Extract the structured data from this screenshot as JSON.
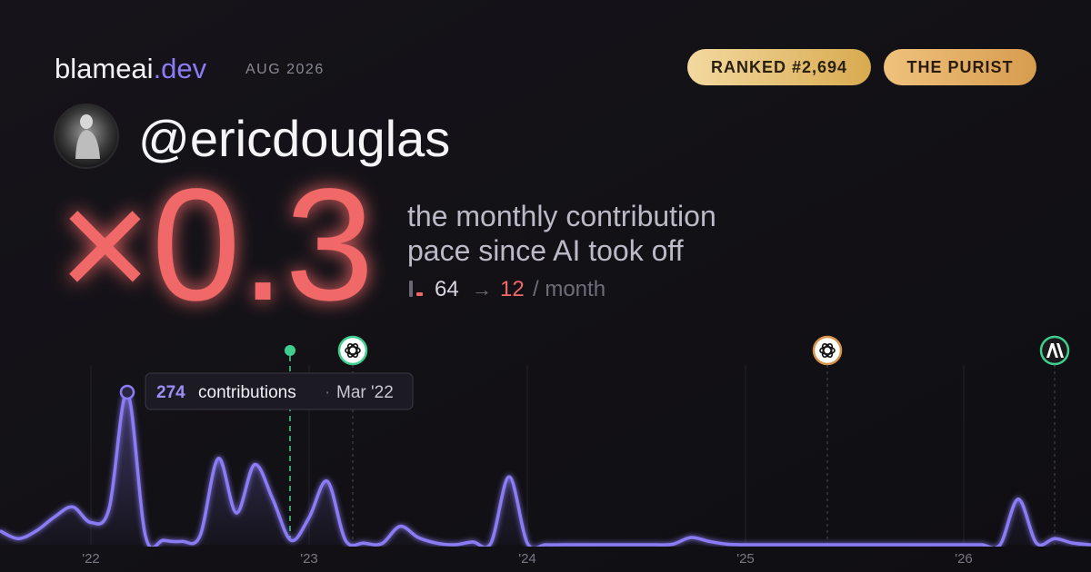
{
  "header": {
    "brand": "blameai",
    "brand_tld": ".dev",
    "period": "AUG 2026",
    "rank_badge": "RANKED #2,694",
    "type_badge": "THE PURIST"
  },
  "profile": {
    "handle": "@ericdouglas"
  },
  "headline": {
    "multiplier": "×0.3",
    "line1": "the monthly contribution",
    "line2": "pace since AI took off",
    "before": "64",
    "arrow": "→",
    "after": "12",
    "unit": "/ month"
  },
  "tooltip": {
    "unit": "contributions",
    "separator": "·",
    "label": "Mar '22"
  },
  "chart_data": {
    "type": "line",
    "color": "#8b7cf6",
    "categories": [
      null,
      null,
      null,
      null,
      null,
      "'22",
      null,
      null,
      null,
      null,
      null,
      null,
      null,
      null,
      null,
      null,
      null,
      "'23",
      null,
      null,
      null,
      null,
      null,
      null,
      null,
      null,
      null,
      null,
      null,
      "'24",
      null,
      null,
      null,
      null,
      null,
      null,
      null,
      null,
      null,
      null,
      null,
      "'25",
      null,
      null,
      null,
      null,
      null,
      null,
      null,
      null,
      null,
      null,
      null,
      "'26",
      null,
      null,
      null,
      null,
      null,
      null,
      null
    ],
    "values": [
      25,
      11,
      25,
      50,
      68,
      40,
      65,
      274,
      16,
      8,
      6,
      16,
      155,
      57,
      144,
      82,
      8,
      49,
      114,
      8,
      3,
      2,
      33,
      13,
      3,
      0,
      5,
      3,
      122,
      3,
      0,
      0,
      0,
      0,
      0,
      0,
      0,
      1,
      13,
      6,
      1,
      0,
      0,
      0,
      0,
      0,
      0,
      0,
      0,
      0,
      0,
      0,
      0,
      0,
      0,
      0,
      82,
      3,
      11,
      3,
      0
    ],
    "ylim": [
      0,
      300
    ]
  }
}
